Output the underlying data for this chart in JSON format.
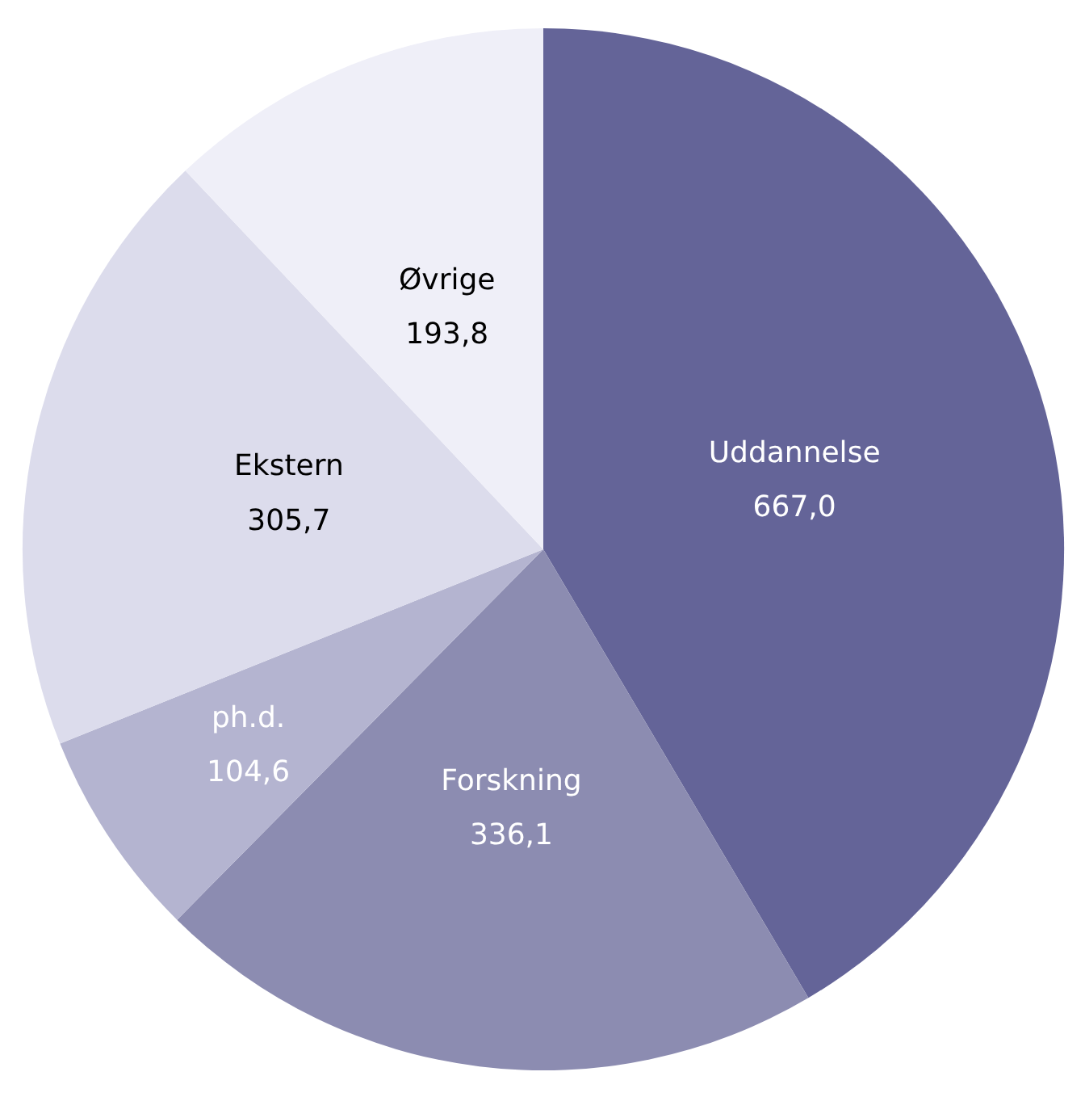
{
  "chart_data": {
    "type": "pie",
    "categories": [
      "Uddannelse",
      "Forskning",
      "ph.d.",
      "Ekstern",
      "Øvrige"
    ],
    "values": [
      667.0,
      336.1,
      104.6,
      305.7,
      193.8
    ],
    "value_labels": [
      "667,0",
      "336,1",
      "104,6",
      "305,7",
      "193,8"
    ],
    "colors": [
      "#646498",
      "#8c8cb1",
      "#b4b4d0",
      "#dcdcec",
      "#efeff8"
    ]
  }
}
